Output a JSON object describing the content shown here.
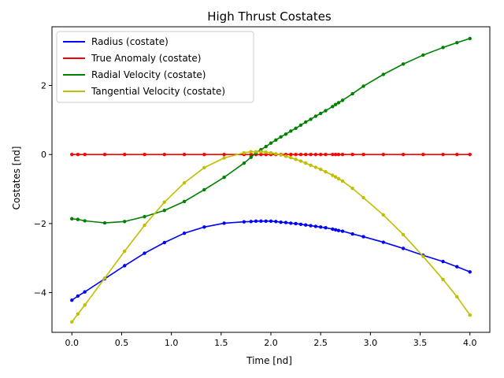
{
  "chart_data": {
    "type": "line",
    "title": "High Thrust Costates",
    "xlabel": "Time [nd]",
    "ylabel": "Costates [nd]",
    "xlim": [
      -0.2,
      4.2
    ],
    "ylim": [
      -5.15,
      3.7
    ],
    "xticks": [
      0.0,
      0.5,
      1.0,
      1.5,
      2.0,
      2.5,
      3.0,
      3.5,
      4.0
    ],
    "xtick_labels": [
      "0.0",
      "0.5",
      "1.0",
      "1.5",
      "2.0",
      "2.5",
      "3.0",
      "3.5",
      "4.0"
    ],
    "yticks": [
      -4,
      -2,
      0,
      2
    ],
    "ytick_labels": [
      "−4",
      "−2",
      "0",
      "2"
    ],
    "grid": false,
    "legend_position": "top-left",
    "series": [
      {
        "name": "Radius (costate)",
        "color": "#0000ff",
        "x": [
          0.0,
          0.06,
          0.13,
          0.33,
          0.53,
          0.73,
          0.93,
          1.13,
          1.33,
          1.53,
          1.73,
          1.8,
          1.85,
          1.9,
          1.95,
          2.0,
          2.05,
          2.1,
          2.15,
          2.2,
          2.25,
          2.3,
          2.35,
          2.4,
          2.45,
          2.5,
          2.55,
          2.62,
          2.65,
          2.68,
          2.72,
          2.82,
          2.93,
          3.13,
          3.33,
          3.53,
          3.73,
          3.87,
          4.0
        ],
        "y": [
          -4.22,
          -4.1,
          -3.98,
          -3.6,
          -3.22,
          -2.86,
          -2.55,
          -2.28,
          -2.1,
          -1.99,
          -1.95,
          -1.94,
          -1.93,
          -1.93,
          -1.93,
          -1.93,
          -1.94,
          -1.96,
          -1.97,
          -1.99,
          -2.0,
          -2.02,
          -2.04,
          -2.06,
          -2.08,
          -2.1,
          -2.12,
          -2.16,
          -2.18,
          -2.2,
          -2.22,
          -2.3,
          -2.38,
          -2.54,
          -2.72,
          -2.92,
          -3.1,
          -3.25,
          -3.4
        ]
      },
      {
        "name": "True Anomaly (costate)",
        "color": "#ff0000",
        "x": [
          0.0,
          0.06,
          0.13,
          0.33,
          0.53,
          0.73,
          0.93,
          1.13,
          1.33,
          1.53,
          1.73,
          1.8,
          1.85,
          1.9,
          1.95,
          2.0,
          2.05,
          2.1,
          2.15,
          2.2,
          2.25,
          2.3,
          2.35,
          2.4,
          2.45,
          2.5,
          2.55,
          2.62,
          2.65,
          2.68,
          2.72,
          2.82,
          2.93,
          3.13,
          3.33,
          3.53,
          3.73,
          3.87,
          4.0
        ],
        "y": [
          0.0,
          0.0,
          0.0,
          0.0,
          0.0,
          0.0,
          0.0,
          0.0,
          0.0,
          0.0,
          0.0,
          0.0,
          0.0,
          0.0,
          0.0,
          0.0,
          0.0,
          0.0,
          0.0,
          0.0,
          0.0,
          0.0,
          0.0,
          0.0,
          0.0,
          0.0,
          0.0,
          0.0,
          0.0,
          0.0,
          0.0,
          0.0,
          0.0,
          0.0,
          0.0,
          0.0,
          0.0,
          0.0,
          0.0
        ]
      },
      {
        "name": "Radial Velocity (costate)",
        "color": "#008000",
        "x": [
          0.0,
          0.06,
          0.13,
          0.33,
          0.53,
          0.73,
          0.93,
          1.13,
          1.33,
          1.53,
          1.73,
          1.8,
          1.85,
          1.9,
          1.95,
          2.0,
          2.05,
          2.1,
          2.15,
          2.2,
          2.25,
          2.3,
          2.35,
          2.4,
          2.45,
          2.5,
          2.55,
          2.62,
          2.65,
          2.68,
          2.72,
          2.82,
          2.93,
          3.13,
          3.33,
          3.53,
          3.73,
          3.87,
          4.0
        ],
        "y": [
          -1.86,
          -1.88,
          -1.92,
          -1.98,
          -1.94,
          -1.8,
          -1.62,
          -1.36,
          -1.02,
          -0.66,
          -0.25,
          -0.08,
          0.05,
          0.14,
          0.23,
          0.33,
          0.42,
          0.51,
          0.59,
          0.68,
          0.76,
          0.85,
          0.94,
          1.02,
          1.11,
          1.19,
          1.27,
          1.39,
          1.45,
          1.5,
          1.57,
          1.76,
          1.98,
          2.32,
          2.62,
          2.88,
          3.1,
          3.24,
          3.36
        ]
      },
      {
        "name": "Tangential Velocity (costate)",
        "color": "#bfbf00",
        "x": [
          0.0,
          0.06,
          0.13,
          0.33,
          0.53,
          0.73,
          0.93,
          1.13,
          1.33,
          1.53,
          1.73,
          1.8,
          1.85,
          1.9,
          1.95,
          2.0,
          2.05,
          2.1,
          2.15,
          2.2,
          2.25,
          2.3,
          2.35,
          2.4,
          2.45,
          2.5,
          2.55,
          2.62,
          2.65,
          2.68,
          2.72,
          2.82,
          2.93,
          3.13,
          3.33,
          3.53,
          3.73,
          3.87,
          4.0
        ],
        "y": [
          -4.85,
          -4.62,
          -4.36,
          -3.58,
          -2.8,
          -2.05,
          -1.38,
          -0.82,
          -0.38,
          -0.1,
          0.05,
          0.08,
          0.08,
          0.08,
          0.07,
          0.05,
          0.02,
          -0.01,
          -0.05,
          -0.09,
          -0.14,
          -0.19,
          -0.25,
          -0.31,
          -0.37,
          -0.43,
          -0.5,
          -0.6,
          -0.65,
          -0.7,
          -0.77,
          -0.98,
          -1.25,
          -1.75,
          -2.32,
          -2.95,
          -3.62,
          -4.12,
          -4.65
        ]
      }
    ]
  }
}
